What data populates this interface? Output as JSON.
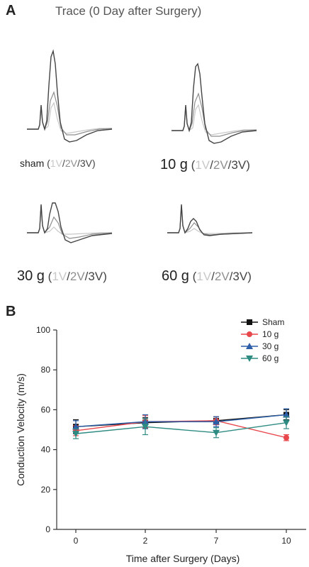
{
  "panel_a": {
    "letter": "A",
    "title": "Trace (0 Day after Surgery)",
    "traces": [
      {
        "condition": "sham",
        "v1": "1V",
        "v2": "2V",
        "v3": "3V"
      },
      {
        "condition": "10 g",
        "v1": "1V",
        "v2": "2V",
        "v3": "3V"
      },
      {
        "condition": "30 g",
        "v1": "1V",
        "v2": "2V",
        "v3": "3V"
      },
      {
        "condition": "60 g",
        "v1": "1V",
        "v2": "2V",
        "v3": "3V"
      }
    ],
    "trace_colors": {
      "v1": "#c8c8c8",
      "v2": "#8f8f8f",
      "v3": "#444444"
    }
  },
  "panel_b": {
    "letter": "B"
  },
  "chart_data": {
    "type": "line",
    "title": "",
    "xlabel": "Time after Surgery (Days)",
    "ylabel": "Conduction Velocity (m/s)",
    "categories": [
      "0",
      "2",
      "7",
      "10"
    ],
    "ylim": [
      0,
      100
    ],
    "yticks": [
      0,
      20,
      40,
      60,
      80,
      100
    ],
    "legend_position": "top-right",
    "grid": false,
    "series": [
      {
        "name": "Sham",
        "color": "#111111",
        "marker": "square",
        "values": [
          51.5,
          53.5,
          54.5,
          57.5
        ],
        "errors": [
          3.5,
          2.5,
          2.0,
          2.5
        ]
      },
      {
        "name": "10 g",
        "color": "#e8474c",
        "marker": "circle",
        "values": [
          49.5,
          54,
          54.5,
          46
        ],
        "errors": [
          2.5,
          3.0,
          2.0,
          1.5
        ]
      },
      {
        "name": "30 g",
        "color": "#2c5fa8",
        "marker": "triangle-up",
        "values": [
          51.5,
          54,
          54,
          57.5
        ],
        "errors": [
          3.0,
          3.5,
          2.5,
          3.0
        ]
      },
      {
        "name": "60 g",
        "color": "#2e8b82",
        "marker": "triangle-down",
        "values": [
          48,
          51.5,
          48.5,
          53.5
        ],
        "errors": [
          2.5,
          4.0,
          2.5,
          3.0
        ]
      }
    ]
  }
}
